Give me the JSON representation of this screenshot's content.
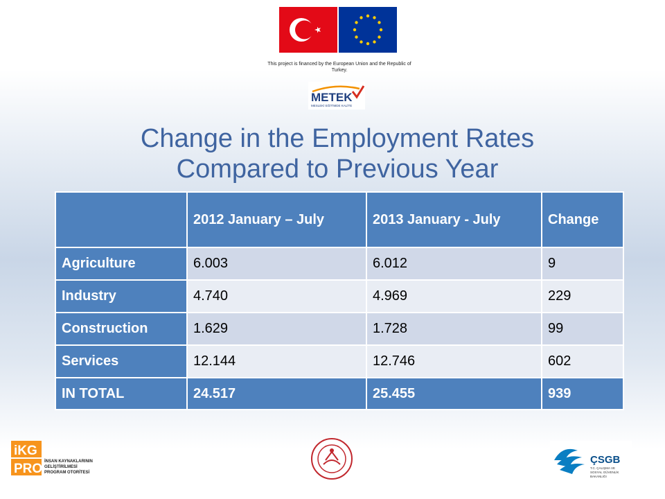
{
  "funding_note": "This project is financed by the European Union and the Republic of Turkey.",
  "logos": {
    "metek": "METEK",
    "metek_sub": "MESLEKİ EĞİTİMDE KALİTE",
    "ikg_top": "iKG",
    "ikg_bottom": "PRO",
    "ikg_text_1": "İNSAN KAYNAKLARININ",
    "ikg_text_2": "GELİŞTİRİLMESİ",
    "ikg_text_3": "PROGRAM OTORİTESİ",
    "csgb": "ÇSGB",
    "csgb_sub_1": "T.C. ÇALIŞMA VE",
    "csgb_sub_2": "SOSYAL GÜVENLİK",
    "csgb_sub_3": "BAKANLIĞI"
  },
  "title": {
    "line1": "Change in the Employment Rates",
    "line2": "Compared to Previous Year"
  },
  "table": {
    "headers": [
      "",
      "2012 January – July",
      "2013 January - July",
      "Change"
    ],
    "rows": [
      {
        "label": "Agriculture",
        "v2012": "6.003",
        "v2013": "6.012",
        "change": "9"
      },
      {
        "label": "Industry",
        "v2012": "4.740",
        "v2013": "4.969",
        "change": "229"
      },
      {
        "label": "Construction",
        "v2012": "1.629",
        "v2013": "1.728",
        "change": "99"
      },
      {
        "label": "Services",
        "v2012": "12.144",
        "v2013": "12.746",
        "change": "602"
      }
    ],
    "total": {
      "label": "IN TOTAL",
      "v2012": "24.517",
      "v2013": "25.455",
      "change": "939"
    }
  },
  "colors": {
    "header_blue": "#4e81bd",
    "row_odd": "#d0d8e8",
    "row_even": "#e9edf4",
    "title_blue": "#3f64a0"
  }
}
